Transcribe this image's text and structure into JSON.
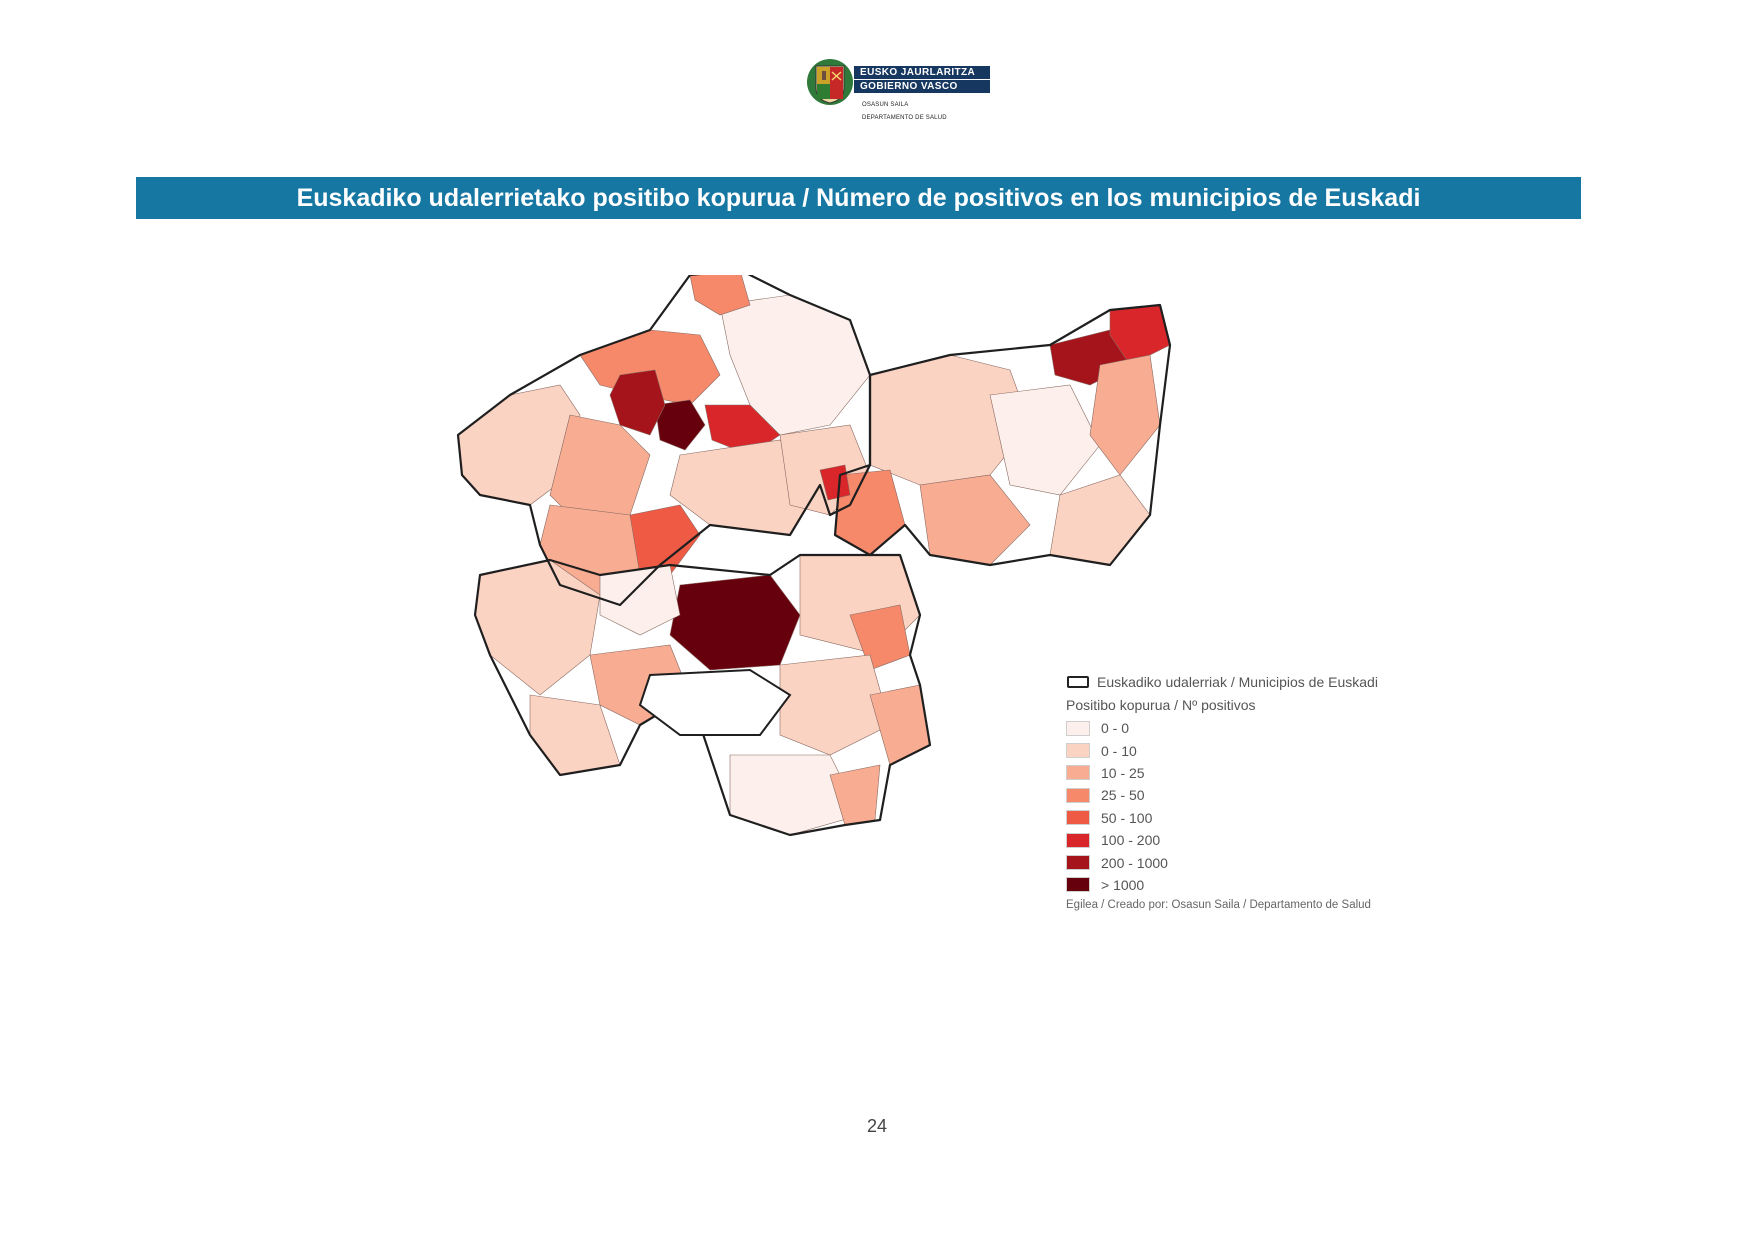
{
  "header": {
    "logo_line1": "EUSKO JAURLARITZA",
    "logo_line2": "GOBIERNO VASCO",
    "dept_line1": "OSASUN SAILA",
    "dept_line2": "DEPARTAMENTO DE SALUD"
  },
  "title": "Euskadiko udalerrietako positibo kopurua / Número de positivos en los municipios de Euskadi",
  "legend": {
    "boundary_label": "Euskadiko udalerriak / Municipios de Euskadi",
    "heading": "Positibo kopurua / Nº positivos",
    "classes": [
      {
        "label": "0 - 0",
        "color": "#fdf0ec"
      },
      {
        "label": "0 - 10",
        "color": "#fbd3c3"
      },
      {
        "label": "10 - 25",
        "color": "#f8ad92"
      },
      {
        "label": "25 - 50",
        "color": "#f5896a"
      },
      {
        "label": "50 - 100",
        "color": "#ef5a44"
      },
      {
        "label": "100 - 200",
        "color": "#d8262a"
      },
      {
        "label": "200 - 1000",
        "color": "#a5131b"
      },
      {
        "label": "> 1000",
        "color": "#67000d"
      }
    ],
    "credit": "Egilea / Creado por: Osasun Saila / Departamento de Salud"
  },
  "page_number": "24"
}
